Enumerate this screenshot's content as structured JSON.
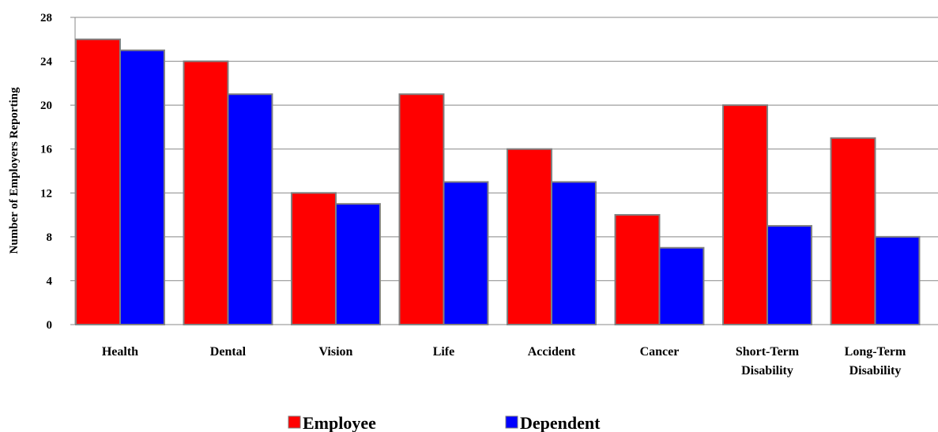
{
  "chart_data": {
    "type": "bar",
    "y_label": "Number of Employers Reporting",
    "categories": [
      "Health",
      "Dental",
      "Vision",
      "Life",
      "Accident",
      "Cancer",
      "Short-Term Disability",
      "Long-Term Disability"
    ],
    "series": [
      {
        "name": "Employee",
        "color": "#ff0000",
        "values": [
          26,
          24,
          12,
          21,
          16,
          10,
          20,
          17
        ]
      },
      {
        "name": "Dependent",
        "color": "#0000ff",
        "values": [
          25,
          21,
          11,
          13,
          13,
          7,
          9,
          8
        ]
      }
    ],
    "ylim": [
      0,
      28
    ],
    "yticks": [
      0,
      4,
      8,
      12,
      16,
      20,
      24,
      28
    ],
    "grid": true,
    "legend": "bottom"
  }
}
